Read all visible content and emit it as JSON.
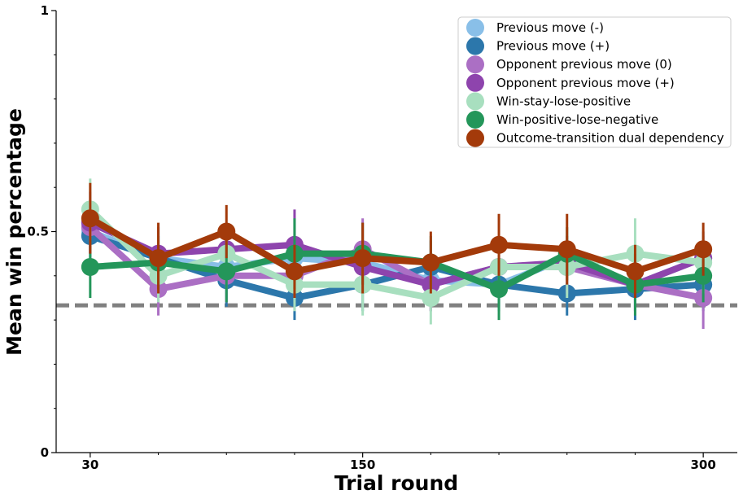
{
  "chart_data": {
    "type": "line",
    "title": "",
    "xlabel": "Trial round",
    "ylabel": "Mean win percentage",
    "xlim": [
      15,
      315
    ],
    "ylim": [
      0,
      1
    ],
    "x": [
      30,
      60,
      90,
      120,
      150,
      180,
      210,
      240,
      270,
      300
    ],
    "x_ticks": [
      30,
      150,
      300
    ],
    "x_tick_labels": [
      "30",
      "150",
      "300"
    ],
    "y_ticks": [
      0,
      0.5,
      1
    ],
    "y_tick_labels": [
      "0",
      "0.5",
      "1"
    ],
    "y_minor_ticks": [
      0.1,
      0.2,
      0.3,
      0.4,
      0.6,
      0.7,
      0.8,
      0.9
    ],
    "x_minor_ticks": [
      60,
      90,
      120,
      180,
      210,
      240,
      270
    ],
    "chance_line": {
      "value": 0.333,
      "color": "#808080"
    },
    "legend_position": "top-right",
    "series": [
      {
        "name": "Previous move (-)",
        "color": "#89bfe8",
        "values": [
          0.5,
          0.44,
          0.42,
          0.44,
          0.43,
          0.39,
          0.38,
          0.44,
          0.38,
          0.44
        ],
        "err": [
          0.05,
          0.05,
          0.05,
          0.05,
          0.05,
          0.05,
          0.05,
          0.05,
          0.05,
          0.05
        ]
      },
      {
        "name": "Previous move (+)",
        "color": "#2c77ab",
        "values": [
          0.49,
          0.44,
          0.39,
          0.35,
          0.38,
          0.42,
          0.38,
          0.36,
          0.37,
          0.38
        ],
        "err": [
          0.07,
          0.07,
          0.06,
          0.05,
          0.06,
          0.06,
          0.06,
          0.05,
          0.07,
          0.06
        ]
      },
      {
        "name": "Opponent previous move (0)",
        "color": "#ab6fc4",
        "values": [
          0.51,
          0.37,
          0.4,
          0.4,
          0.46,
          0.38,
          0.42,
          0.42,
          0.38,
          0.35
        ],
        "err": [
          0.06,
          0.06,
          0.06,
          0.06,
          0.07,
          0.06,
          0.06,
          0.06,
          0.06,
          0.07
        ]
      },
      {
        "name": "Opponent previous move (+)",
        "color": "#8e44ad",
        "values": [
          0.52,
          0.45,
          0.46,
          0.47,
          0.42,
          0.38,
          0.42,
          0.43,
          0.38,
          0.44
        ],
        "err": [
          0.07,
          0.06,
          0.06,
          0.08,
          0.06,
          0.06,
          0.06,
          0.06,
          0.06,
          0.06
        ]
      },
      {
        "name": "Win-stay-lose-positive",
        "color": "#a8dfbf",
        "values": [
          0.55,
          0.4,
          0.45,
          0.38,
          0.38,
          0.35,
          0.42,
          0.42,
          0.45,
          0.43
        ],
        "err": [
          0.07,
          0.06,
          0.06,
          0.06,
          0.07,
          0.06,
          0.06,
          0.07,
          0.08,
          0.07
        ]
      },
      {
        "name": "Win-positive-lose-negative",
        "color": "#24965a",
        "values": [
          0.42,
          0.43,
          0.41,
          0.45,
          0.45,
          0.43,
          0.37,
          0.45,
          0.38,
          0.4
        ],
        "err": [
          0.07,
          0.06,
          0.07,
          0.08,
          0.07,
          0.06,
          0.07,
          0.06,
          0.07,
          0.06
        ]
      },
      {
        "name": "Outcome-transition dual dependency",
        "color": "#a33a0a",
        "values": [
          0.53,
          0.44,
          0.5,
          0.41,
          0.44,
          0.43,
          0.47,
          0.46,
          0.41,
          0.46
        ],
        "err": [
          0.08,
          0.08,
          0.06,
          0.06,
          0.08,
          0.07,
          0.07,
          0.08,
          0.06,
          0.06
        ]
      }
    ]
  }
}
